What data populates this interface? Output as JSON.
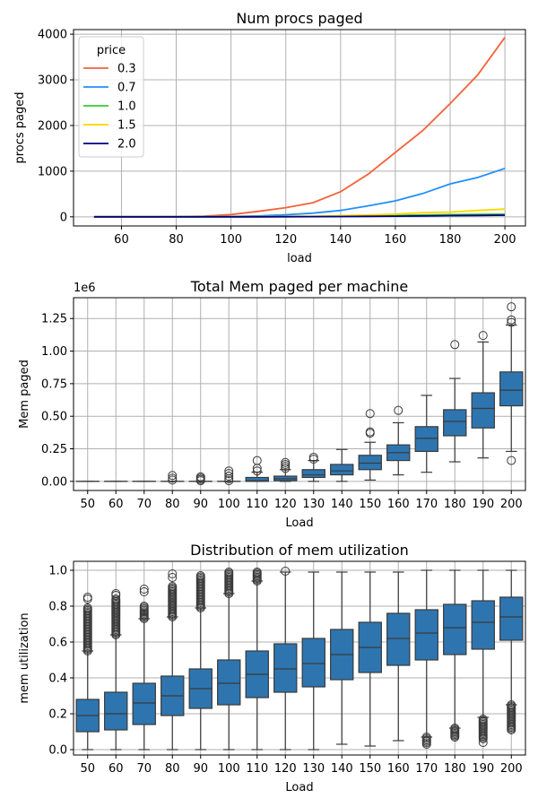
{
  "chart_data": [
    {
      "type": "line",
      "title": "Num procs paged",
      "xlabel": "load",
      "ylabel": "procs paged",
      "xlim": [
        42.5,
        207.5
      ],
      "ylim": [
        -200,
        4100
      ],
      "xticks": [
        60,
        80,
        100,
        120,
        140,
        160,
        180,
        200
      ],
      "yticks": [
        0,
        1000,
        2000,
        3000,
        4000
      ],
      "grid": true,
      "legend": {
        "title": "price",
        "placement": "top-left"
      },
      "x": [
        50,
        60,
        70,
        80,
        90,
        100,
        110,
        120,
        130,
        140,
        150,
        160,
        170,
        180,
        190,
        200
      ],
      "series": [
        {
          "name": "0.3",
          "color": "#f4623a",
          "values": [
            0,
            0,
            0,
            5,
            15,
            50,
            120,
            200,
            310,
            550,
            930,
            1410,
            1890,
            2480,
            3100,
            3930
          ]
        },
        {
          "name": "0.7",
          "color": "#1e90ff",
          "values": [
            0,
            0,
            0,
            0,
            2,
            8,
            20,
            45,
            80,
            140,
            240,
            350,
            510,
            720,
            860,
            1060
          ]
        },
        {
          "name": "1.0",
          "color": "#32cd32",
          "values": [
            0,
            0,
            0,
            0,
            0,
            1,
            2,
            4,
            8,
            12,
            20,
            30,
            40,
            50,
            55,
            60
          ]
        },
        {
          "name": "1.5",
          "color": "#ffd700",
          "values": [
            0,
            0,
            0,
            0,
            0,
            2,
            5,
            10,
            15,
            25,
            40,
            60,
            90,
            105,
            140,
            170
          ]
        },
        {
          "name": "2.0",
          "color": "#000080",
          "values": [
            0,
            0,
            0,
            0,
            0,
            0,
            1,
            2,
            4,
            6,
            10,
            15,
            20,
            25,
            30,
            35
          ]
        }
      ]
    },
    {
      "type": "box",
      "title": "Total Mem paged per machine",
      "xlabel": "Load",
      "ylabel": "Mem paged",
      "scale_label": "1e6",
      "ylim": [
        -0.07,
        1.41
      ],
      "yticks": [
        0.0,
        0.25,
        0.5,
        0.75,
        1.0,
        1.25
      ],
      "ytick_labels": [
        "0.00",
        "0.25",
        "0.50",
        "0.75",
        "1.00",
        "1.25"
      ],
      "grid": true,
      "color": "#2e75b0",
      "categories": [
        "50",
        "60",
        "70",
        "80",
        "90",
        "100",
        "110",
        "120",
        "130",
        "140",
        "150",
        "160",
        "170",
        "180",
        "190",
        "200"
      ],
      "boxes": [
        {
          "min": 0,
          "q1": 0,
          "median": 0,
          "q3": 0,
          "max": 0,
          "outliers": []
        },
        {
          "min": 0,
          "q1": 0,
          "median": 0,
          "q3": 0,
          "max": 0,
          "outliers": []
        },
        {
          "min": 0,
          "q1": 0,
          "median": 0,
          "q3": 0,
          "max": 0,
          "outliers": []
        },
        {
          "min": 0,
          "q1": 0,
          "median": 0,
          "q3": 0,
          "max": 0,
          "outliers": [
            0.01,
            0.025,
            0.045
          ]
        },
        {
          "min": 0,
          "q1": 0,
          "median": 0,
          "q3": 0,
          "max": 0,
          "outliers": [
            0.005,
            0.015,
            0.025,
            0.035
          ]
        },
        {
          "min": 0,
          "q1": 0,
          "median": 0,
          "q3": 0,
          "max": 0,
          "outliers": [
            0.005,
            0.02,
            0.04,
            0.06,
            0.08
          ]
        },
        {
          "min": 0,
          "q1": 0,
          "median": 0.005,
          "q3": 0.03,
          "max": 0.07,
          "outliers": [
            0.08,
            0.1,
            0.16
          ]
        },
        {
          "min": 0,
          "q1": 0.005,
          "median": 0.02,
          "q3": 0.04,
          "max": 0.09,
          "outliers": [
            0.1,
            0.115,
            0.13,
            0.145
          ]
        },
        {
          "min": 0,
          "q1": 0.03,
          "median": 0.05,
          "q3": 0.09,
          "max": 0.16,
          "outliers": [
            0.17,
            0.185
          ]
        },
        {
          "min": 0,
          "q1": 0.05,
          "median": 0.08,
          "q3": 0.13,
          "max": 0.245,
          "outliers": []
        },
        {
          "min": 0.01,
          "q1": 0.09,
          "median": 0.14,
          "q3": 0.2,
          "max": 0.3,
          "outliers": [
            0.37,
            0.38,
            0.52
          ]
        },
        {
          "min": 0.05,
          "q1": 0.16,
          "median": 0.22,
          "q3": 0.28,
          "max": 0.45,
          "outliers": [
            0.545
          ]
        },
        {
          "min": 0.07,
          "q1": 0.23,
          "median": 0.33,
          "q3": 0.42,
          "max": 0.66,
          "outliers": []
        },
        {
          "min": 0.15,
          "q1": 0.35,
          "median": 0.46,
          "q3": 0.55,
          "max": 0.79,
          "outliers": [
            1.05
          ]
        },
        {
          "min": 0.18,
          "q1": 0.41,
          "median": 0.56,
          "q3": 0.68,
          "max": 1.07,
          "outliers": [
            1.12
          ]
        },
        {
          "min": 0.23,
          "q1": 0.58,
          "median": 0.7,
          "q3": 0.84,
          "max": 1.2,
          "outliers": [
            0.16,
            1.22,
            1.24,
            1.34
          ]
        }
      ]
    },
    {
      "type": "box",
      "title": "Distribution of mem utilization",
      "xlabel": "Load",
      "ylabel": "mem utilization",
      "ylim": [
        -0.03,
        1.05
      ],
      "yticks": [
        0.0,
        0.2,
        0.4,
        0.6,
        0.8,
        1.0
      ],
      "ytick_labels": [
        "0.0",
        "0.2",
        "0.4",
        "0.6",
        "0.8",
        "1.0"
      ],
      "grid": true,
      "color": "#2e75b0",
      "categories": [
        "50",
        "60",
        "70",
        "80",
        "90",
        "100",
        "110",
        "120",
        "130",
        "140",
        "150",
        "160",
        "170",
        "180",
        "190",
        "200"
      ],
      "boxes": [
        {
          "min": 0.0,
          "q1": 0.1,
          "median": 0.19,
          "q3": 0.28,
          "max": 0.55,
          "outlier_range": [
            0.55,
            0.79
          ],
          "outliers": [
            0.84,
            0.85
          ]
        },
        {
          "min": 0.0,
          "q1": 0.11,
          "median": 0.2,
          "q3": 0.32,
          "max": 0.64,
          "outlier_range": [
            0.64,
            0.84
          ],
          "outliers": [
            0.86,
            0.87
          ]
        },
        {
          "min": 0.0,
          "q1": 0.14,
          "median": 0.26,
          "q3": 0.37,
          "max": 0.73,
          "outlier_range": [
            0.73,
            0.8
          ],
          "outliers": [
            0.88,
            0.895
          ]
        },
        {
          "min": 0.0,
          "q1": 0.19,
          "median": 0.3,
          "q3": 0.41,
          "max": 0.74,
          "outlier_range": [
            0.74,
            0.91
          ],
          "outliers": [
            0.96,
            0.98
          ]
        },
        {
          "min": 0.0,
          "q1": 0.23,
          "median": 0.34,
          "q3": 0.45,
          "max": 0.79,
          "outlier_range": [
            0.79,
            0.97
          ],
          "outliers": []
        },
        {
          "min": 0.0,
          "q1": 0.25,
          "median": 0.37,
          "q3": 0.5,
          "max": 0.87,
          "outlier_range": [
            0.87,
            0.99
          ],
          "outliers": []
        },
        {
          "min": 0.0,
          "q1": 0.29,
          "median": 0.42,
          "q3": 0.55,
          "max": 0.94,
          "outlier_range": [
            0.94,
            0.99
          ],
          "outliers": []
        },
        {
          "min": 0.0,
          "q1": 0.32,
          "median": 0.45,
          "q3": 0.59,
          "max": 0.99,
          "outlier_range": null,
          "outliers": [
            0.995
          ]
        },
        {
          "min": 0.0,
          "q1": 0.35,
          "median": 0.48,
          "q3": 0.62,
          "max": 0.99,
          "outlier_range": null,
          "outliers": []
        },
        {
          "min": 0.03,
          "q1": 0.39,
          "median": 0.53,
          "q3": 0.67,
          "max": 0.99,
          "outlier_range": null,
          "outliers": []
        },
        {
          "min": 0.02,
          "q1": 0.43,
          "median": 0.57,
          "q3": 0.71,
          "max": 0.99,
          "outlier_range": null,
          "outliers": []
        },
        {
          "min": 0.05,
          "q1": 0.47,
          "median": 0.62,
          "q3": 0.76,
          "max": 0.99,
          "outlier_range": null,
          "outliers": []
        },
        {
          "min": 0.07,
          "q1": 0.5,
          "median": 0.65,
          "q3": 0.78,
          "max": 1.0,
          "outlier_range": [
            0.03,
            0.07
          ],
          "outliers": []
        },
        {
          "min": 0.12,
          "q1": 0.53,
          "median": 0.68,
          "q3": 0.81,
          "max": 1.0,
          "outlier_range": [
            0.07,
            0.12
          ],
          "outliers": []
        },
        {
          "min": 0.18,
          "q1": 0.56,
          "median": 0.71,
          "q3": 0.83,
          "max": 1.0,
          "outlier_range": [
            0.06,
            0.17
          ],
          "outliers": [
            0.04
          ]
        },
        {
          "min": 0.25,
          "q1": 0.61,
          "median": 0.74,
          "q3": 0.85,
          "max": 1.0,
          "outlier_range": [
            0.11,
            0.25
          ],
          "outliers": []
        }
      ]
    }
  ]
}
